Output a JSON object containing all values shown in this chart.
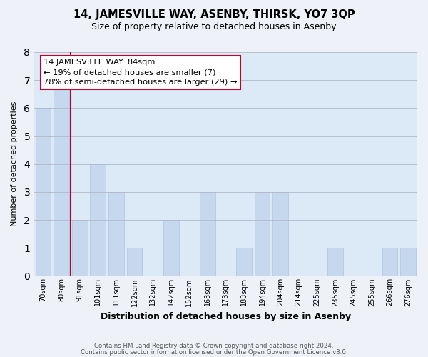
{
  "title": "14, JAMESVILLE WAY, ASENBY, THIRSK, YO7 3QP",
  "subtitle": "Size of property relative to detached houses in Asenby",
  "xlabel": "Distribution of detached houses by size in Asenby",
  "ylabel": "Number of detached properties",
  "footer_line1": "Contains HM Land Registry data © Crown copyright and database right 2024.",
  "footer_line2": "Contains public sector information licensed under the Open Government Licence v3.0.",
  "categories": [
    "70sqm",
    "80sqm",
    "91sqm",
    "101sqm",
    "111sqm",
    "122sqm",
    "132sqm",
    "142sqm",
    "152sqm",
    "163sqm",
    "173sqm",
    "183sqm",
    "194sqm",
    "204sqm",
    "214sqm",
    "225sqm",
    "235sqm",
    "245sqm",
    "255sqm",
    "266sqm",
    "276sqm"
  ],
  "values": [
    6,
    7,
    2,
    4,
    3,
    1,
    0,
    2,
    0,
    3,
    0,
    1,
    3,
    3,
    0,
    0,
    1,
    0,
    0,
    1,
    1
  ],
  "highlight_index": 1,
  "highlight_color": "#c0002a",
  "bar_color": "#c5d8ee",
  "column_bg_color": "#dce9f7",
  "bar_edge_color": "#aec6e0",
  "ylim": [
    0,
    8
  ],
  "yticks": [
    0,
    1,
    2,
    3,
    4,
    5,
    6,
    7,
    8
  ],
  "annotation_title": "14 JAMESVILLE WAY: 84sqm",
  "annotation_line1": "← 19% of detached houses are smaller (7)",
  "annotation_line2": "78% of semi-detached houses are larger (29) →",
  "background_color": "#eef2f8"
}
